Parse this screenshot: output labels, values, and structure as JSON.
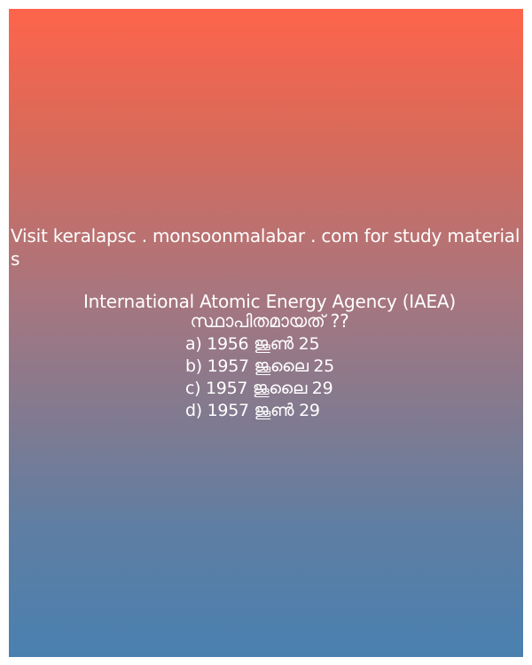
{
  "visit_text": "Visit keralapsc . monsoonmalabar . com for study materials",
  "question": "International Atomic Energy Agency (IAEA)  സ്ഥാപിതമായത് ??",
  "options": [
    "a) 1956 ജൂൺ 25",
    "b) 1957 ജൂലൈ 25",
    "c) 1957 ജൂലൈ 29",
    "d) 1957 ജൂൺ 29"
  ],
  "colors": {
    "gradient_top": "#fe644b",
    "gradient_bottom": "#4a80b0",
    "text": "#ffffff"
  }
}
